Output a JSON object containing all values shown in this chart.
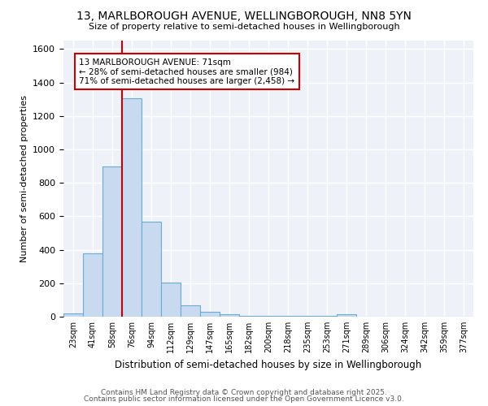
{
  "title1": "13, MARLBOROUGH AVENUE, WELLINGBOROUGH, NN8 5YN",
  "title2": "Size of property relative to semi-detached houses in Wellingborough",
  "xlabel": "Distribution of semi-detached houses by size in Wellingborough",
  "ylabel": "Number of semi-detached properties",
  "categories": [
    "23sqm",
    "41sqm",
    "58sqm",
    "76sqm",
    "94sqm",
    "112sqm",
    "129sqm",
    "147sqm",
    "165sqm",
    "182sqm",
    "200sqm",
    "218sqm",
    "235sqm",
    "253sqm",
    "271sqm",
    "289sqm",
    "306sqm",
    "324sqm",
    "342sqm",
    "359sqm",
    "377sqm"
  ],
  "values": [
    20,
    380,
    900,
    1305,
    570,
    205,
    70,
    30,
    15,
    5,
    3,
    3,
    3,
    3,
    15,
    0,
    0,
    0,
    0,
    0,
    0
  ],
  "bar_color": "#c8daf0",
  "bar_edge_color": "#6aaad4",
  "vline_x_idx": 3,
  "vline_color": "#cc0000",
  "annotation_text": "13 MARLBOROUGH AVENUE: 71sqm\n← 28% of semi-detached houses are smaller (984)\n71% of semi-detached houses are larger (2,458) →",
  "annotation_box_color": "#ffffff",
  "annotation_box_edge": "#cc0000",
  "footer1": "Contains HM Land Registry data © Crown copyright and database right 2025.",
  "footer2": "Contains public sector information licensed under the Open Government Licence v3.0.",
  "ylim": [
    0,
    1650
  ],
  "plot_bg_color": "#eef2f8",
  "fig_bg_color": "#ffffff",
  "grid_color": "#ffffff"
}
